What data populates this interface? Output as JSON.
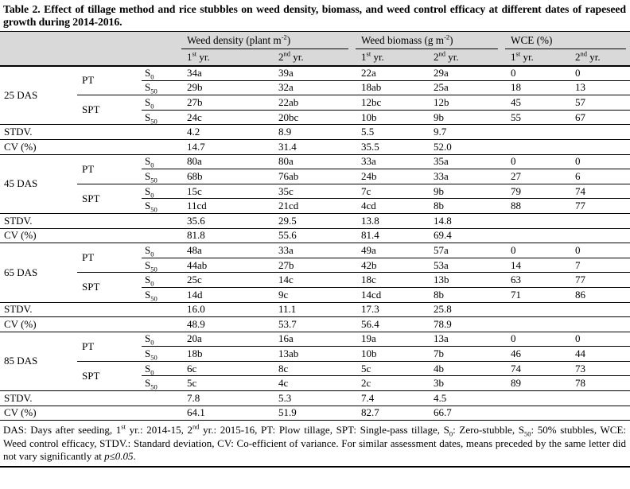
{
  "page": {
    "title": "Table 2. Effect of tillage method and rice stubbles on weed density, biomass, and weed control efficacy at different dates of rapeseed growth during 2014-2016."
  },
  "table": {
    "column_groups": [
      "Weed density (plant m^{-2})",
      "Weed biomass (g m^{-2})",
      "WCE (%)"
    ],
    "year_headers": [
      "1^{st} yr.",
      "2^{nd} yr.",
      "1^{st} yr.",
      "2^{nd} yr.",
      "1^{st} yr.",
      "2^{nd} yr."
    ],
    "row_labels": {
      "stdv": "STDV.",
      "cv": "CV (%)"
    },
    "blocks": [
      {
        "das": "25 DAS",
        "rows": [
          {
            "tillage": "PT",
            "stubble": "S_{0}",
            "values": [
              "34a",
              "39a",
              "22a",
              "29a",
              "0",
              "0"
            ]
          },
          {
            "tillage": null,
            "stubble": "S_{50}",
            "values": [
              "29b",
              "32a",
              "18ab",
              "25a",
              "18",
              "13"
            ]
          },
          {
            "tillage": "SPT",
            "stubble": "S_{0}",
            "values": [
              "27b",
              "22ab",
              "12bc",
              "12b",
              "45",
              "57"
            ]
          },
          {
            "tillage": null,
            "stubble": "S_{50}",
            "values": [
              "24c",
              "20bc",
              "10b",
              "9b",
              "55",
              "67"
            ]
          }
        ],
        "stdv": [
          "4.2",
          "8.9",
          "5.5",
          "9.7"
        ],
        "cv": [
          "14.7",
          "31.4",
          "35.5",
          "52.0"
        ]
      },
      {
        "das": "45 DAS",
        "rows": [
          {
            "tillage": "PT",
            "stubble": "S_{0}",
            "values": [
              "80a",
              "80a",
              "33a",
              "35a",
              "0",
              "0"
            ]
          },
          {
            "tillage": null,
            "stubble": "S_{50}",
            "values": [
              "68b",
              "76ab",
              "24b",
              "33a",
              "27",
              "6"
            ]
          },
          {
            "tillage": "SPT",
            "stubble": "S_{0}",
            "values": [
              "15c",
              "35c",
              "7c",
              "9b",
              "79",
              "74"
            ]
          },
          {
            "tillage": null,
            "stubble": "S_{50}",
            "values": [
              "11cd",
              "21cd",
              "4cd",
              "8b",
              "88",
              "77"
            ]
          }
        ],
        "stdv": [
          "35.6",
          "29.5",
          "13.8",
          "14.8"
        ],
        "cv": [
          "81.8",
          "55.6",
          "81.4",
          "69.4"
        ]
      },
      {
        "das": "65 DAS",
        "rows": [
          {
            "tillage": "PT",
            "stubble": "S_{0}",
            "values": [
              "48a",
              "33a",
              "49a",
              "57a",
              "0",
              "0"
            ]
          },
          {
            "tillage": null,
            "stubble": "S_{50}",
            "values": [
              "44ab",
              "27b",
              "42b",
              "53a",
              "14",
              "7"
            ]
          },
          {
            "tillage": "SPT",
            "stubble": "S_{0}",
            "values": [
              "25c",
              "14c",
              "18c",
              "13b",
              "63",
              "77"
            ]
          },
          {
            "tillage": null,
            "stubble": "S_{50}",
            "values": [
              "14d",
              "9c",
              "14cd",
              "8b",
              "71",
              "86"
            ]
          }
        ],
        "stdv": [
          "16.0",
          "11.1",
          "17.3",
          "25.8"
        ],
        "cv": [
          "48.9",
          "53.7",
          "56.4",
          "78.9"
        ]
      },
      {
        "das": "85 DAS",
        "rows": [
          {
            "tillage": "PT",
            "stubble": "S_{0}",
            "values": [
              "20a",
              "16a",
              "19a",
              "13a",
              "0",
              "0"
            ]
          },
          {
            "tillage": null,
            "stubble": "S_{50}",
            "values": [
              "18b",
              "13ab",
              "10b",
              "7b",
              "46",
              "44"
            ]
          },
          {
            "tillage": "SPT",
            "stubble": "S_{0}",
            "values": [
              "6c",
              "8c",
              "5c",
              "4b",
              "74",
              "73"
            ]
          },
          {
            "tillage": null,
            "stubble": "S_{50}",
            "values": [
              "5c",
              "4c",
              "2c",
              "3b",
              "89",
              "78"
            ]
          }
        ],
        "stdv": [
          "7.8",
          "5.3",
          "7.4",
          "4.5"
        ],
        "cv": [
          "64.1",
          "51.9",
          "82.7",
          "66.7"
        ]
      }
    ]
  },
  "footnote": {
    "pre": "DAS: Days after seeding, 1^{st} yr.: 2014-15, 2^{nd} yr.: 2015-16, PT: Plow tillage, SPT: Single-pass tillage, S_{0}: Zero-stubble, S_{50}: 50% stubbles, WCE: Weed control efficacy, STDV.: Standard deviation, CV: Co-efficient of variance. For similar assessment dates, means preceded by the same letter did not vary significantly at ",
    "italic": "p≤0.05",
    "post": "."
  },
  "colors": {
    "header_bg": "#d9d9d9",
    "rule": "#000000",
    "text": "#000000",
    "page_bg": "#ffffff"
  }
}
